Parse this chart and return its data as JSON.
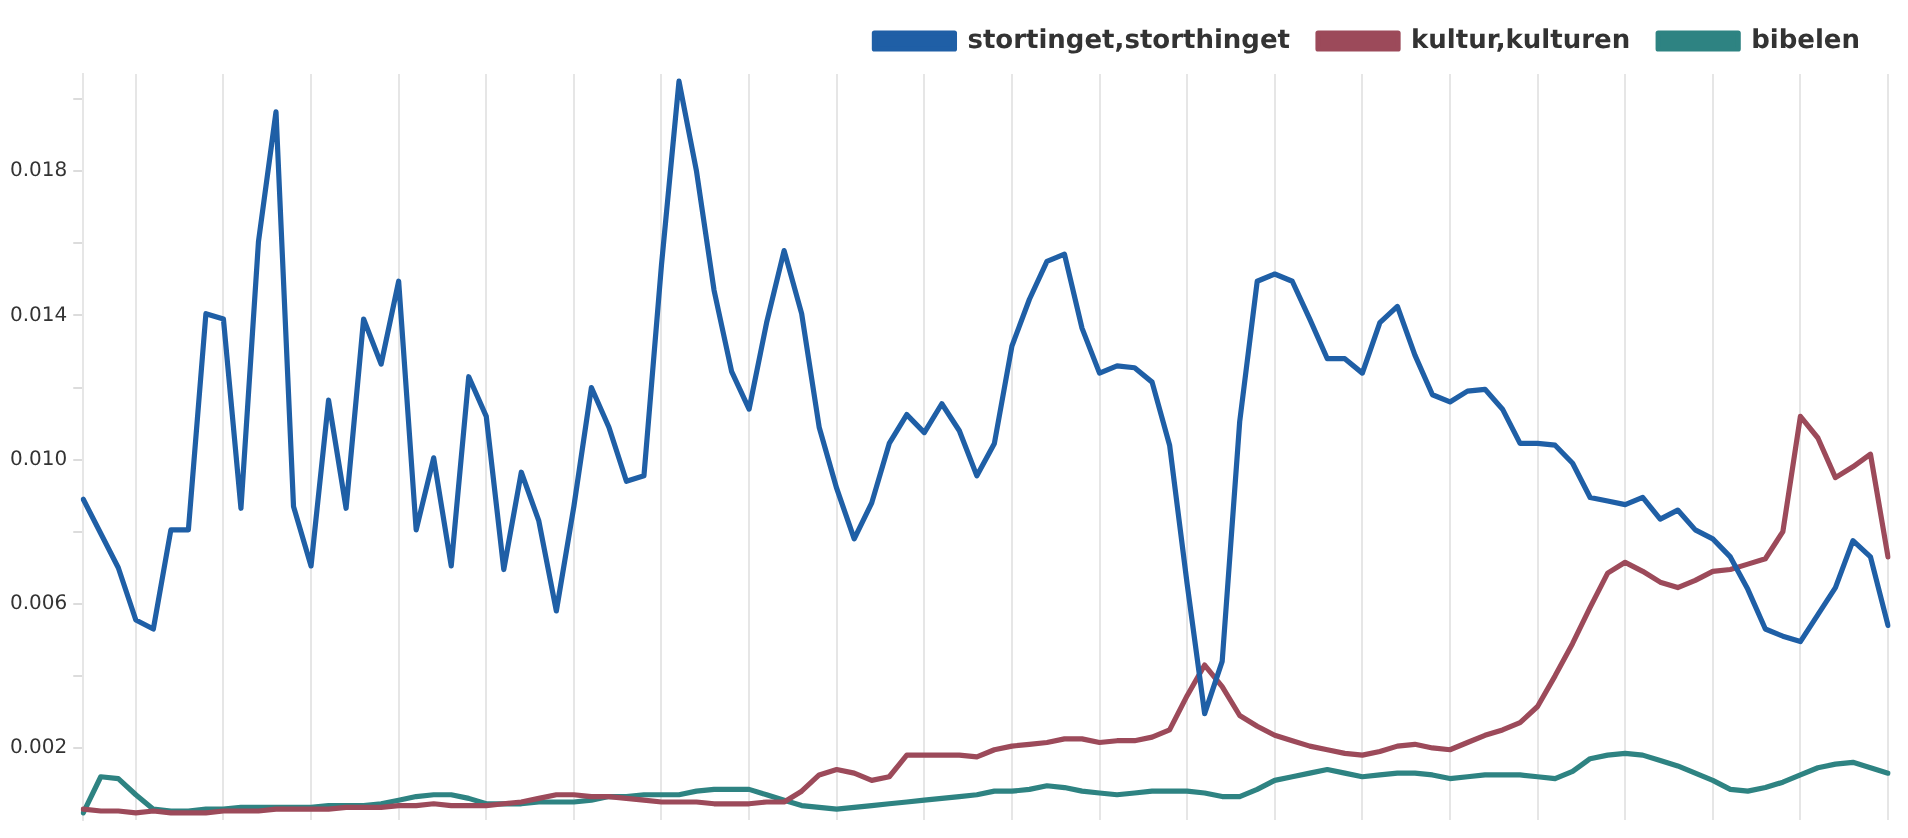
{
  "chart_data": {
    "type": "line",
    "categories": [
      null,
      null,
      null,
      null,
      null,
      null,
      null,
      null,
      null,
      null,
      null,
      null,
      null,
      null,
      null,
      null,
      null,
      null,
      null,
      null,
      null,
      null,
      null,
      null,
      null,
      null,
      null,
      null,
      null,
      null,
      null,
      null,
      null,
      null,
      null,
      null,
      null,
      null,
      null,
      null,
      null,
      null,
      null,
      null,
      null,
      null,
      null,
      null,
      null,
      null,
      null,
      null,
      null,
      null,
      null,
      null,
      null,
      null,
      null,
      null,
      null,
      null,
      null,
      null,
      null,
      null,
      null,
      null,
      null,
      null,
      null,
      null,
      null,
      null,
      null,
      null,
      null,
      null,
      null,
      null,
      null,
      null,
      null,
      null,
      null,
      null,
      null,
      null,
      null,
      null,
      null,
      null,
      null,
      null,
      null,
      null,
      null,
      null,
      null,
      null,
      null,
      null,
      null,
      null
    ],
    "series": [
      {
        "name": "stortinget,storthinget",
        "color": "#1f5fa6",
        "values": [
          0.0089,
          0.00795,
          0.007,
          0.00555,
          0.0053,
          0.00805,
          0.00805,
          0.01405,
          0.0139,
          0.00865,
          0.01605,
          0.01965,
          0.0087,
          0.00705,
          0.01165,
          0.00865,
          0.0139,
          0.01265,
          0.01495,
          0.00805,
          0.01005,
          0.00705,
          0.0123,
          0.0112,
          0.00695,
          0.00965,
          0.0083,
          0.0058,
          0.0087,
          0.012,
          0.0109,
          0.0094,
          0.00955,
          0.0154,
          0.0205,
          0.018,
          0.0147,
          0.01245,
          0.0114,
          0.0138,
          0.0158,
          0.01405,
          0.0109,
          0.0092,
          0.0078,
          0.0088,
          0.01045,
          0.01125,
          0.01075,
          0.01155,
          0.0108,
          0.00955,
          0.01045,
          0.01315,
          0.01445,
          0.0155,
          0.0157,
          0.01365,
          0.0124,
          0.0126,
          0.01255,
          0.01215,
          0.0104,
          0.00655,
          0.00295,
          0.0044,
          0.01105,
          0.01495,
          0.01515,
          0.01495,
          0.0139,
          0.0128,
          0.0128,
          0.0124,
          0.0138,
          0.01425,
          0.0129,
          0.0118,
          0.0116,
          0.0119,
          0.01195,
          0.0114,
          0.01045,
          0.01045,
          0.0104,
          0.0099,
          0.00895,
          0.00885,
          0.00875,
          0.00895,
          0.00835,
          0.0086,
          0.00805,
          0.0078,
          0.0073,
          0.0064,
          0.0053,
          0.0051,
          0.00495,
          0.0057,
          0.00645,
          0.00775,
          0.0073,
          0.0054
        ]
      },
      {
        "name": "kultur,kulturen",
        "color": "#9c4a5a",
        "values": [
          0.0003,
          0.00025,
          0.00025,
          0.0002,
          0.00025,
          0.0002,
          0.0002,
          0.0002,
          0.00025,
          0.00025,
          0.00025,
          0.0003,
          0.0003,
          0.0003,
          0.0003,
          0.00035,
          0.00035,
          0.00035,
          0.0004,
          0.0004,
          0.00045,
          0.0004,
          0.0004,
          0.0004,
          0.00045,
          0.0005,
          0.0006,
          0.0007,
          0.0007,
          0.00065,
          0.00065,
          0.0006,
          0.00055,
          0.0005,
          0.0005,
          0.0005,
          0.00045,
          0.00045,
          0.00045,
          0.0005,
          0.0005,
          0.0008,
          0.00125,
          0.0014,
          0.0013,
          0.0011,
          0.0012,
          0.0018,
          0.0018,
          0.0018,
          0.0018,
          0.00175,
          0.00195,
          0.00205,
          0.0021,
          0.00215,
          0.00225,
          0.00225,
          0.00215,
          0.0022,
          0.0022,
          0.0023,
          0.0025,
          0.00345,
          0.0043,
          0.0037,
          0.0029,
          0.0026,
          0.00235,
          0.0022,
          0.00205,
          0.00195,
          0.00185,
          0.0018,
          0.0019,
          0.00205,
          0.0021,
          0.002,
          0.00195,
          0.00215,
          0.00235,
          0.0025,
          0.0027,
          0.00315,
          0.004,
          0.0049,
          0.0059,
          0.00685,
          0.00715,
          0.0069,
          0.0066,
          0.00645,
          0.00665,
          0.0069,
          0.00695,
          0.0071,
          0.00725,
          0.008,
          0.0112,
          0.0106,
          0.0095,
          0.0098,
          0.01015,
          0.0073
        ]
      },
      {
        "name": "bibelen",
        "color": "#2e8382",
        "values": [
          0.0002,
          0.0012,
          0.00115,
          0.0007,
          0.0003,
          0.00025,
          0.00025,
          0.0003,
          0.0003,
          0.00035,
          0.00035,
          0.00035,
          0.00035,
          0.00035,
          0.0004,
          0.0004,
          0.0004,
          0.00045,
          0.00055,
          0.00065,
          0.0007,
          0.0007,
          0.0006,
          0.00045,
          0.00045,
          0.00045,
          0.0005,
          0.0005,
          0.0005,
          0.00055,
          0.00065,
          0.00065,
          0.0007,
          0.0007,
          0.0007,
          0.0008,
          0.00085,
          0.00085,
          0.00085,
          0.0007,
          0.00055,
          0.0004,
          0.00035,
          0.0003,
          0.00035,
          0.0004,
          0.00045,
          0.0005,
          0.00055,
          0.0006,
          0.00065,
          0.0007,
          0.0008,
          0.0008,
          0.00085,
          0.00095,
          0.0009,
          0.0008,
          0.00075,
          0.0007,
          0.00075,
          0.0008,
          0.0008,
          0.0008,
          0.00075,
          0.00065,
          0.00065,
          0.00085,
          0.0011,
          0.0012,
          0.0013,
          0.0014,
          0.0013,
          0.0012,
          0.00125,
          0.0013,
          0.0013,
          0.00125,
          0.00115,
          0.0012,
          0.00125,
          0.00125,
          0.00125,
          0.0012,
          0.00115,
          0.00135,
          0.0017,
          0.0018,
          0.00185,
          0.0018,
          0.00165,
          0.0015,
          0.0013,
          0.0011,
          0.00085,
          0.0008,
          0.0009,
          0.00105,
          0.00125,
          0.00145,
          0.00155,
          0.0016,
          0.00145,
          0.0013
        ]
      }
    ],
    "ylim": [
      0,
      0.0207
    ],
    "yticks": [
      {
        "value": 0.004,
        "label": null
      },
      {
        "value": 0.006,
        "label": "0.006"
      },
      {
        "value": 0.008,
        "label": null
      },
      {
        "value": 0.01,
        "label": "0.010"
      },
      {
        "value": 0.012,
        "label": null
      },
      {
        "value": 0.014,
        "label": "0.014"
      },
      {
        "value": 0.016,
        "label": null
      },
      {
        "value": 0.018,
        "label": "0.018"
      },
      {
        "value": 0.02,
        "label": null
      },
      {
        "value": 0.002,
        "label": "0.002"
      }
    ],
    "grid": "x",
    "legend": "top right",
    "marker": "none",
    "line_style": "solid"
  }
}
